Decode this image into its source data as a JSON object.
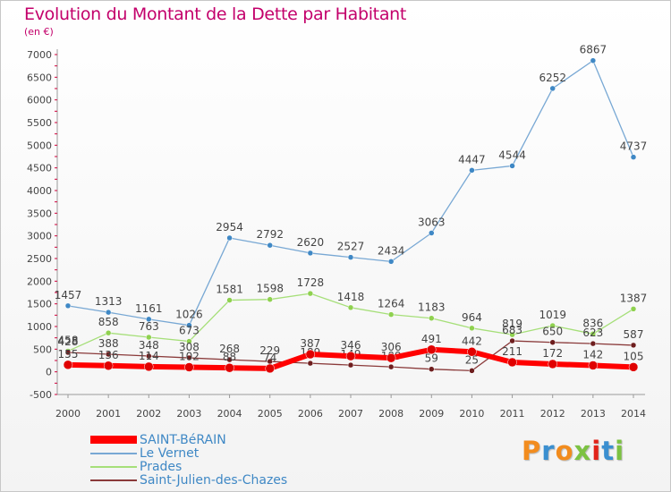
{
  "title": "Evolution du Montant de la Dette par Habitant",
  "unit": "(en €)",
  "brand": "Proxiti",
  "chart_data": {
    "type": "line",
    "x": [
      "2000",
      "2001",
      "2002",
      "2003",
      "2004",
      "2005",
      "2006",
      "2007",
      "2008",
      "2009",
      "2010",
      "2011",
      "2012",
      "2013",
      "2014"
    ],
    "ylim": [
      -500,
      7000
    ],
    "yticks": [
      -500,
      0,
      500,
      1000,
      1500,
      2000,
      2500,
      3000,
      3500,
      4000,
      4500,
      5000,
      5500,
      6000,
      6500,
      7000
    ],
    "grid": false,
    "legend_position": "bottom-left",
    "series": [
      {
        "name": "Le Vernet",
        "color": "#78a8d4",
        "marker": "#3f88c5",
        "width": 1.3,
        "values": [
          1457,
          1313,
          1161,
          1026,
          2954,
          2792,
          2620,
          2527,
          2434,
          3063,
          4447,
          4544,
          6252,
          6867,
          4737
        ],
        "labels": [
          "1457",
          "1313",
          "1161",
          "1026",
          "2954",
          "2792",
          "2620",
          "2527",
          "2434",
          "3063",
          "4447",
          "4544",
          "6252",
          "6867",
          "4737"
        ]
      },
      {
        "name": "Prades",
        "color": "#a6df79",
        "marker": "#8fd14f",
        "width": 1.3,
        "values": [
          458,
          858,
          763,
          673,
          1581,
          1598,
          1728,
          1418,
          1264,
          1183,
          964,
          819,
          1019,
          836,
          1387
        ],
        "labels": [
          "458",
          "858",
          "763",
          "673",
          "1581",
          "1598",
          "1728",
          "1418",
          "1264",
          "1183",
          "964",
          "819",
          "1019",
          "836",
          "1387"
        ]
      },
      {
        "name": "Saint-Julien-des-Chazes",
        "color": "#8a3a3a",
        "marker": "#6e1e1e",
        "width": 1.3,
        "values": [
          428,
          388,
          348,
          308,
          268,
          229,
          189,
          149,
          109,
          59,
          25,
          683,
          650,
          623,
          587
        ],
        "labels": [
          "428",
          "388",
          "348",
          "308",
          "268",
          "229",
          "189",
          "149",
          "109",
          "59",
          "25",
          "683",
          "650",
          "623",
          "587"
        ]
      },
      {
        "name": "SAINT-BéRAIN",
        "color": "#ff0000",
        "marker": "#e00000",
        "width": 6,
        "values": [
          155,
          136,
          114,
          102,
          88,
          74,
          387,
          346,
          306,
          491,
          442,
          211,
          172,
          142,
          105
        ],
        "labels": [
          "155",
          "136",
          "114",
          "102",
          "88",
          "74",
          "387",
          "346",
          "306",
          "491",
          "442",
          "211",
          "172",
          "142",
          "105"
        ]
      }
    ]
  },
  "legend": [
    {
      "label": "SAINT-BéRAIN",
      "color": "#ff0000",
      "thickness": 9
    },
    {
      "label": "Le Vernet",
      "color": "#78a8d4",
      "thickness": 2
    },
    {
      "label": "Prades",
      "color": "#a6df79",
      "thickness": 2
    },
    {
      "label": "Saint-Julien-des-Chazes",
      "color": "#8a3a3a",
      "thickness": 2
    }
  ]
}
